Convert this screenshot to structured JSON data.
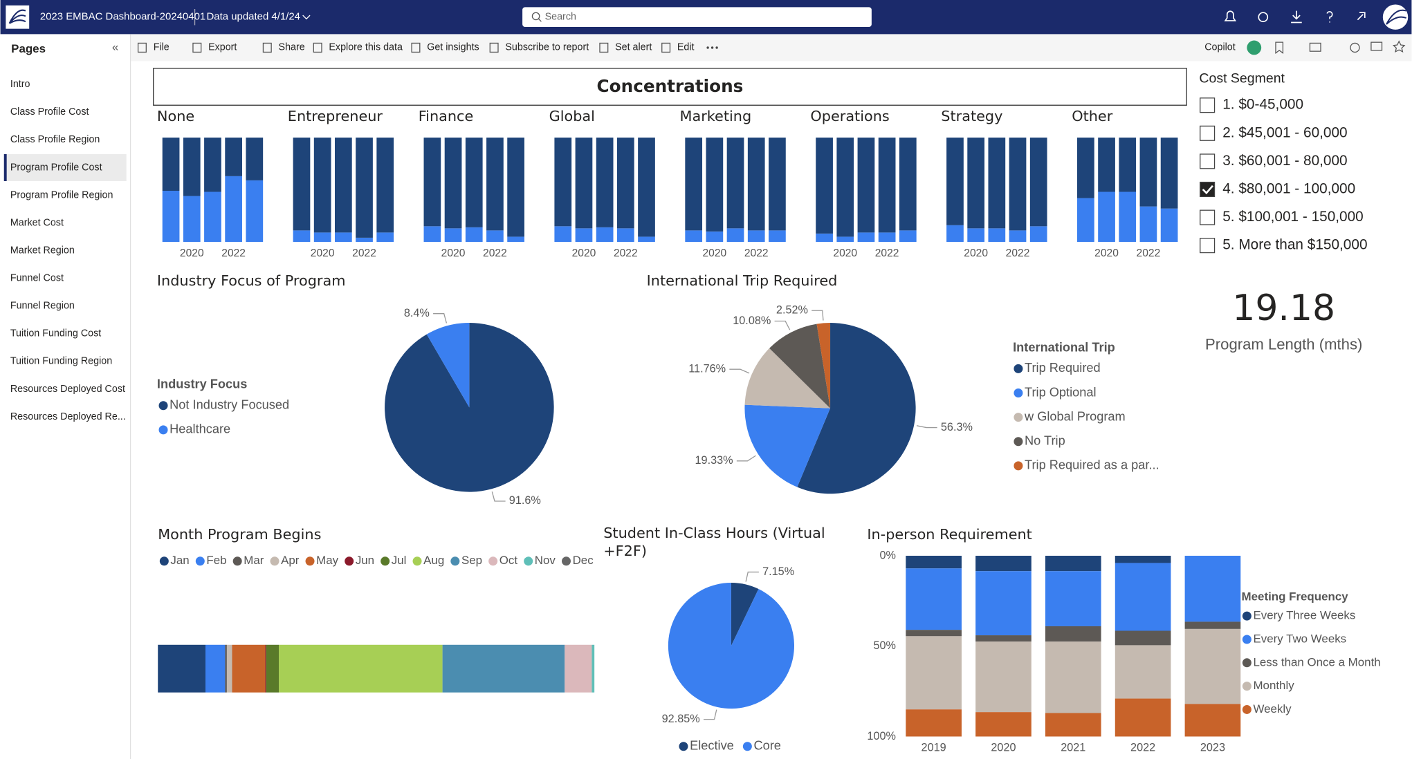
{
  "header": {
    "title": "2023 EMBAC Dashboard-20240401",
    "updated": "Data updated 4/1/24",
    "search": "Search"
  },
  "toolbar": {
    "items": [
      "File",
      "Export",
      "Share",
      "Explore this data",
      "Get insights",
      "Subscribe to report",
      "Set alert",
      "Edit"
    ],
    "copilot": "Copilot"
  },
  "pages": {
    "title": "Pages",
    "items": [
      "Intro",
      "Class Profile Cost",
      "Class Profile Region",
      "Program Profile Cost",
      "Program Profile Region",
      "Market Cost",
      "Market Region",
      "Funnel Cost",
      "Funnel Region",
      "Tuition Funding Cost",
      "Tuition Funding Region",
      "Resources Deployed Cost",
      "Resources Deployed Re..."
    ],
    "active": 3
  },
  "concentrations": {
    "type": "bar",
    "stacked": "100%",
    "title": "Concentrations",
    "years": [
      null,
      "2020",
      null,
      "2022",
      null
    ],
    "colors": [
      "#3a7ff0",
      "#1e4479"
    ],
    "panels": [
      {
        "label": "None",
        "bottom": [
          49,
          44,
          48,
          63,
          59
        ],
        "top": [
          51,
          56,
          52,
          37,
          41
        ]
      },
      {
        "label": "Entrepreneur",
        "bottom": [
          11,
          9,
          9,
          4,
          9
        ],
        "top": [
          89,
          91,
          91,
          96,
          91
        ]
      },
      {
        "label": "Finance",
        "bottom": [
          15,
          13,
          14,
          11,
          5
        ],
        "top": [
          85,
          87,
          86,
          89,
          95
        ]
      },
      {
        "label": "Global",
        "bottom": [
          15,
          13,
          14,
          13,
          5
        ],
        "top": [
          85,
          87,
          86,
          87,
          95
        ]
      },
      {
        "label": "Marketing",
        "bottom": [
          11,
          10,
          13,
          11,
          11
        ],
        "top": [
          89,
          90,
          87,
          89,
          89
        ]
      },
      {
        "label": "Operations",
        "bottom": [
          8,
          5,
          9,
          9,
          11
        ],
        "top": [
          92,
          95,
          91,
          91,
          89
        ]
      },
      {
        "label": "Strategy",
        "bottom": [
          16,
          13,
          13,
          11,
          15
        ],
        "top": [
          84,
          87,
          87,
          89,
          85
        ]
      },
      {
        "label": "Other",
        "bottom": [
          42,
          48,
          48,
          34,
          32
        ],
        "top": [
          58,
          52,
          52,
          66,
          68
        ]
      }
    ]
  },
  "industry_focus": {
    "type": "pie",
    "title": "Industry Focus of Program",
    "legend_title": "Industry Focus",
    "categories": [
      "Not Industry Focused",
      "Healthcare"
    ],
    "values": [
      91.6,
      8.4
    ],
    "value_labels": [
      "91.6%",
      "8.4%"
    ],
    "colors": [
      "#1e4479",
      "#3a7ff0"
    ]
  },
  "international_trip": {
    "type": "pie",
    "title": "International Trip Required",
    "legend_title": "International Trip",
    "categories": [
      "Trip Required",
      "Trip Optional",
      "w Global Program",
      "No Trip",
      "Trip Required as a par..."
    ],
    "values": [
      56.3,
      19.33,
      11.76,
      10.08,
      2.52
    ],
    "value_labels": [
      "56.3%",
      "19.33%",
      "11.76%",
      "10.08%",
      "2.52%"
    ],
    "colors": [
      "#1e4479",
      "#3a7ff0",
      "#c5bab0",
      "#5d5955",
      "#c8632a"
    ]
  },
  "cost_segment": {
    "title": "Cost Segment",
    "items": [
      "1. $0-45,000",
      "2. $45,001 - 60,000",
      "3. $60,001 - 80,000",
      "4. $80,001 - 100,000",
      "5. $100,001 - 150,000",
      "5. More than $150,000"
    ],
    "checked": [
      false,
      false,
      false,
      true,
      false,
      false
    ]
  },
  "kpi": {
    "value": 19.18,
    "label": "Program Length (mths)"
  },
  "month_begins": {
    "type": "bar",
    "orientation": "horizontal",
    "stacked": "100%",
    "title": "Month Program Begins",
    "series": [
      {
        "name": "Jan",
        "color": "#1e4479",
        "values": [
          10.9
        ]
      },
      {
        "name": "Feb",
        "color": "#3a7ff0",
        "values": [
          4.5
        ]
      },
      {
        "name": "Mar",
        "color": "#5d5955",
        "values": [
          0.4
        ]
      },
      {
        "name": "Apr",
        "color": "#c5bab0",
        "values": [
          1.2
        ]
      },
      {
        "name": "May",
        "color": "#c8632a",
        "values": [
          7.6
        ]
      },
      {
        "name": "Jun",
        "color": "#8b1a2b",
        "values": [
          0.2
        ]
      },
      {
        "name": "Jul",
        "color": "#5a7a2a",
        "values": [
          2.9
        ]
      },
      {
        "name": "Aug",
        "color": "#a7cf55",
        "values": [
          37.5
        ]
      },
      {
        "name": "Sep",
        "color": "#4b8db0",
        "values": [
          28.0
        ]
      },
      {
        "name": "Oct",
        "color": "#dbb8bb",
        "values": [
          6.2
        ]
      },
      {
        "name": "Nov",
        "color": "#5fbfb8",
        "values": [
          0.6
        ]
      },
      {
        "name": "Dec",
        "color": "#666666",
        "values": [
          0
        ]
      }
    ]
  },
  "class_hours": {
    "type": "pie",
    "title": "Student In-Class Hours (Virtual +F2F)",
    "categories": [
      "Elective",
      "Core"
    ],
    "values": [
      7.15,
      92.85
    ],
    "value_labels": [
      "7.15%",
      "92.85%"
    ],
    "colors": [
      "#1e4479",
      "#3a7ff0"
    ]
  },
  "in_person": {
    "type": "bar",
    "stacked": "100%",
    "title": "In-person Requirement",
    "legend_title": "Meeting Frequency",
    "categories": [
      "2019",
      "2020",
      "2021",
      "2022",
      "2023"
    ],
    "series": [
      {
        "name": "Every Three Weeks",
        "color": "#1e4479",
        "values": [
          7,
          8.5,
          8.5,
          4,
          0
        ]
      },
      {
        "name": "Every Two Weeks",
        "color": "#3a7ff0",
        "values": [
          34,
          35.5,
          30.5,
          37.5,
          36.5
        ]
      },
      {
        "name": "Less than Once a Month",
        "color": "#5d5955",
        "values": [
          3.5,
          3.5,
          8.5,
          8,
          4
        ]
      },
      {
        "name": "Monthly",
        "color": "#c5bab0",
        "values": [
          40.5,
          39,
          39.5,
          29.5,
          41.5
        ]
      },
      {
        "name": "Weekly",
        "color": "#c8632a",
        "values": [
          15,
          13.5,
          13,
          21,
          18
        ]
      }
    ],
    "ylim": [
      0,
      100
    ],
    "yticks": [
      {
        "value": 0,
        "label": "0%"
      },
      {
        "value": 50,
        "label": "50%"
      },
      {
        "value": 100,
        "label": "100%"
      }
    ],
    "reverse_y": true
  }
}
